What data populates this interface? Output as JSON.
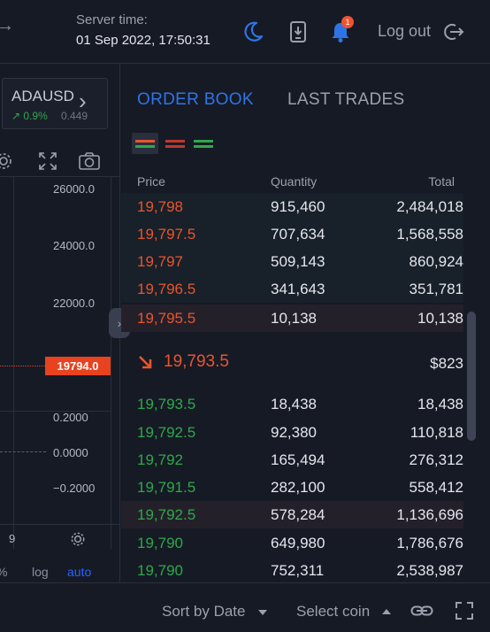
{
  "header": {
    "server_label": "Server time:",
    "server_time": "01 Sep 2022, 17:50:31",
    "notification_count": "1",
    "logout_label": "Log out"
  },
  "symbol": {
    "name": "ADAUSD",
    "change": "0.9%",
    "price": "0.449"
  },
  "chart": {
    "axis_labels": [
      "26000.0",
      "24000.0",
      "22000.0",
      "0.2000",
      "0.0000",
      "−0.2000"
    ],
    "current_price": "19794.0",
    "time_label": "9",
    "opt_pct": "%",
    "opt_log": "log",
    "opt_auto": "auto"
  },
  "tabs": {
    "order_book": "ORDER BOOK",
    "last_trades": "LAST TRADES"
  },
  "columns": {
    "price": "Price",
    "quantity": "Quantity",
    "total": "Total"
  },
  "asks": [
    {
      "price": "19,798",
      "qty": "915,460",
      "total": "2,484,018"
    },
    {
      "price": "19,797.5",
      "qty": "707,634",
      "total": "1,568,558"
    },
    {
      "price": "19,797",
      "qty": "509,143",
      "total": "860,924"
    },
    {
      "price": "19,796.5",
      "qty": "341,643",
      "total": "351,781"
    },
    {
      "price": "19,795.5",
      "qty": "10,138",
      "total": "10,138"
    }
  ],
  "last": {
    "price": "19,793.5",
    "usd": "$823"
  },
  "bids": [
    {
      "price": "19,793.5",
      "qty": "18,438",
      "total": "18,438"
    },
    {
      "price": "19,792.5",
      "qty": "92,380",
      "total": "110,818"
    },
    {
      "price": "19,792",
      "qty": "165,494",
      "total": "276,312"
    },
    {
      "price": "19,791.5",
      "qty": "282,100",
      "total": "558,412"
    },
    {
      "price": "19,792.5",
      "qty": "578,284",
      "total": "1,136,696"
    },
    {
      "price": "19,790",
      "qty": "649,980",
      "total": "1,786,676"
    },
    {
      "price": "19,790",
      "qty": "752,311",
      "total": "2,538,987"
    }
  ],
  "footer": {
    "sort_label": "Sort by Date",
    "coin_label": "Select coin"
  },
  "colors": {
    "accent": "#2f74e6",
    "ask": "#e8552f",
    "bid": "#2ea84a",
    "background": "#161a25"
  }
}
